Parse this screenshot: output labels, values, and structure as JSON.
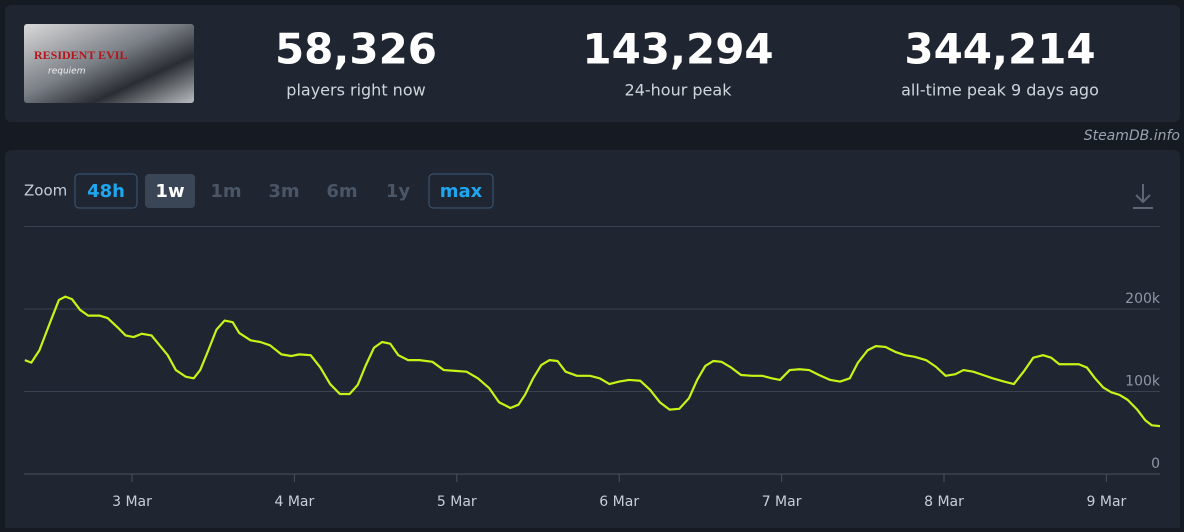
{
  "game": {
    "art_title": "RESIDENT EVIL",
    "art_subtitle": "requiem"
  },
  "stats": [
    {
      "value": "58,326",
      "label": "players right now"
    },
    {
      "value": "143,294",
      "label": "24-hour peak"
    },
    {
      "value": "344,214",
      "label": "all-time peak 9 days ago"
    }
  ],
  "credit": "SteamDB.info",
  "zoom": {
    "label": "Zoom",
    "options": [
      "48h",
      "1w",
      "1m",
      "3m",
      "6m",
      "1y",
      "max"
    ]
  },
  "chart_data": {
    "type": "line",
    "x": [
      2.34,
      2.38,
      2.43,
      2.5,
      2.55,
      2.59,
      2.63,
      2.68,
      2.73,
      2.8,
      2.85,
      2.91,
      2.96,
      3.01,
      3.06,
      3.12,
      3.17,
      3.22,
      3.27,
      3.33,
      3.38,
      3.42,
      3.47,
      3.52,
      3.57,
      3.62,
      3.66,
      3.73,
      3.79,
      3.85,
      3.92,
      3.98,
      4.03,
      4.1,
      4.16,
      4.22,
      4.28,
      4.34,
      4.39,
      4.44,
      4.49,
      4.54,
      4.59,
      4.64,
      4.7,
      4.77,
      4.85,
      4.92,
      4.99,
      5.06,
      5.13,
      5.2,
      5.26,
      5.33,
      5.38,
      5.42,
      5.47,
      5.52,
      5.57,
      5.62,
      5.67,
      5.74,
      5.82,
      5.88,
      5.94,
      6.0,
      6.06,
      6.13,
      6.19,
      6.25,
      6.31,
      6.37,
      6.43,
      6.48,
      6.53,
      6.58,
      6.63,
      6.69,
      6.75,
      6.82,
      6.88,
      6.94,
      6.99,
      7.05,
      7.11,
      7.17,
      7.23,
      7.3,
      7.36,
      7.42,
      7.47,
      7.53,
      7.58,
      7.64,
      7.7,
      7.76,
      7.82,
      7.89,
      7.95,
      8.01,
      8.07,
      8.12,
      8.18,
      8.24,
      8.3,
      8.37,
      8.43,
      8.49,
      8.55,
      8.61,
      8.66,
      8.71,
      8.77,
      8.83,
      8.88,
      8.93,
      8.98,
      9.03,
      9.08,
      9.13,
      9.19,
      9.24,
      9.28,
      9.33
    ],
    "series": [
      {
        "color": "#c9f317",
        "values": [
          138000,
          135000,
          150000,
          186000,
          211000,
          215000,
          212000,
          199000,
          192000,
          192000,
          189000,
          178000,
          168000,
          166000,
          170000,
          168000,
          156000,
          144000,
          126000,
          118000,
          116000,
          126000,
          150000,
          175000,
          186000,
          184000,
          171000,
          162000,
          160000,
          156000,
          145000,
          143000,
          145000,
          144000,
          129000,
          109000,
          97000,
          97000,
          108000,
          132000,
          153000,
          160000,
          158000,
          144000,
          138000,
          138000,
          136000,
          126000,
          125000,
          124000,
          116000,
          104000,
          87000,
          80000,
          84000,
          96000,
          116000,
          132000,
          138000,
          137000,
          124000,
          119000,
          119000,
          116000,
          109000,
          112000,
          114000,
          113000,
          102000,
          87000,
          78000,
          79000,
          92000,
          114000,
          131000,
          137000,
          136000,
          129000,
          120000,
          119000,
          119000,
          116000,
          114000,
          126000,
          127000,
          126000,
          120000,
          114000,
          112000,
          116000,
          135000,
          150000,
          155000,
          154000,
          148000,
          144000,
          142000,
          138000,
          130000,
          119000,
          121000,
          126000,
          124000,
          120000,
          116000,
          112000,
          109000,
          124000,
          141000,
          144000,
          141000,
          133000,
          133000,
          133000,
          129000,
          116000,
          105000,
          99000,
          96000,
          90000,
          78000,
          65000,
          59000,
          58000
        ]
      }
    ],
    "xlim": [
      2.335,
      9.33
    ],
    "xticks": [
      {
        "value": 3,
        "label": "3 Mar"
      },
      {
        "value": 4,
        "label": "4 Mar"
      },
      {
        "value": 5,
        "label": "5 Mar"
      },
      {
        "value": 6,
        "label": "6 Mar"
      },
      {
        "value": 7,
        "label": "7 Mar"
      },
      {
        "value": 8,
        "label": "8 Mar"
      },
      {
        "value": 9,
        "label": "9 Mar"
      }
    ],
    "ylim": [
      0,
      300000
    ],
    "yticks": [
      0,
      {
        "value": 100000,
        "label": "100k"
      },
      {
        "value": 200000,
        "label": "200k"
      }
    ],
    "grid": true
  }
}
